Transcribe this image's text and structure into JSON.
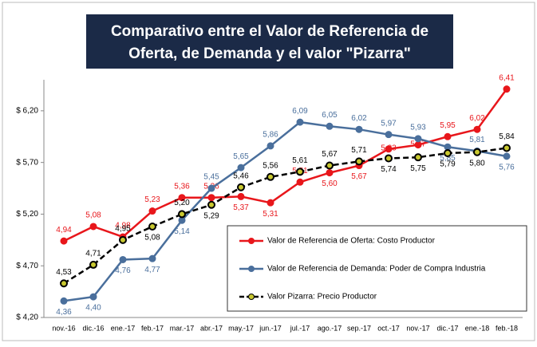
{
  "chart_data": {
    "type": "line",
    "title": "Comparativo entre el Valor de Referencia de Oferta, de Demanda y el valor \"Pizarra\"",
    "categories": [
      "nov.-16",
      "dic.-16",
      "ene.-17",
      "feb.-17",
      "mar.-17",
      "abr.-17",
      "may.-17",
      "jun.-17",
      "jul.-17",
      "ago.-17",
      "sep.-17",
      "oct.-17",
      "nov.-17",
      "dic.-17",
      "ene.-18",
      "feb.-18"
    ],
    "series": [
      {
        "name": "Valor de Referencia de Oferta: Costo Productor",
        "color": "#e8161b",
        "dashed": false,
        "values": [
          4.94,
          5.08,
          4.98,
          5.23,
          5.36,
          5.36,
          5.37,
          5.31,
          5.51,
          5.6,
          5.67,
          5.83,
          5.87,
          5.95,
          6.02,
          6.41
        ],
        "value_labels": [
          "4,94",
          "5,08",
          "4,98",
          "5,23",
          "5,36",
          "5,36",
          "5,37",
          "5,31",
          "5,51",
          "5,60",
          "5,67",
          "5,83",
          "5,87",
          "5,95",
          "6,02",
          "6,41"
        ]
      },
      {
        "name": "Valor de Referencia de Demanda: Poder de Compra Industria",
        "color": "#4a6f9c",
        "dashed": false,
        "values": [
          4.36,
          4.4,
          4.76,
          4.77,
          5.14,
          5.45,
          5.65,
          5.86,
          6.09,
          6.05,
          6.02,
          5.97,
          5.93,
          5.85,
          5.81,
          5.76
        ],
        "value_labels": [
          "4,36",
          "4,40",
          "4,76",
          "4,77",
          "5,14",
          "5,45",
          "5,65",
          "5,86",
          "6,09",
          "6,05",
          "6,02",
          "5,97",
          "5,93",
          "5,85",
          "5,81",
          "5,76"
        ]
      },
      {
        "name": "Valor Pizarra: Precio Productor",
        "color": "#000000",
        "dashed": true,
        "values": [
          4.53,
          4.71,
          4.95,
          5.08,
          5.2,
          5.29,
          5.46,
          5.56,
          5.61,
          5.67,
          5.71,
          5.74,
          5.75,
          5.79,
          5.8,
          5.84
        ],
        "value_labels": [
          "4,53",
          "4,71",
          "4,95",
          "5,08",
          "5,20",
          "5,29",
          "5,46",
          "5,56",
          "5,61",
          "5,67",
          "5,71",
          "5,74",
          "5,75",
          "5,79",
          "5,80",
          "5,84"
        ]
      }
    ],
    "ylim": [
      4.2,
      6.5
    ],
    "yticks": [
      {
        "value": 4.2,
        "label": "$ 4,20"
      },
      {
        "value": 4.7,
        "label": "$ 4,70"
      },
      {
        "value": 5.2,
        "label": "$ 5,20"
      },
      {
        "value": 5.7,
        "label": "$ 5,70"
      },
      {
        "value": 6.2,
        "label": "$ 6,20"
      }
    ],
    "grid": false
  }
}
